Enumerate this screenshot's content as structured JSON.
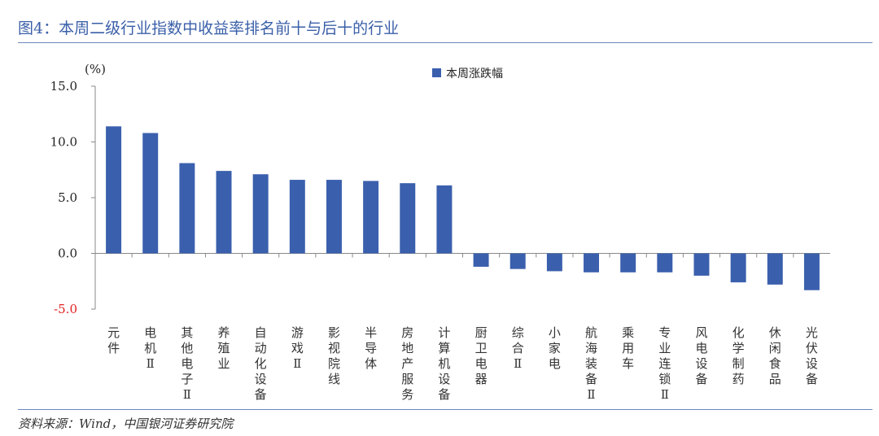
{
  "title": "图4：本周二级行业指数中收益率排名前十与后十的行业",
  "source": "资料来源：Wind，中国银河证券研究院",
  "chart_data": {
    "type": "bar",
    "ylabel": "(%)",
    "ylim": [
      -5.0,
      15.0
    ],
    "yticks": [
      "15.0",
      "10.0",
      "5.0",
      "0.0",
      "-5.0"
    ],
    "ytick_values": [
      15,
      10,
      5,
      0,
      -5
    ],
    "negative_tick_color": "#e02020",
    "bar_color": "#3a5fad",
    "legend": {
      "label": "本周涨跌幅",
      "position": "top-center"
    },
    "categories": [
      "元件",
      "电机Ⅱ",
      "其他电子Ⅱ",
      "养殖业",
      "自动化设备",
      "游戏Ⅱ",
      "影视院线",
      "半导体",
      "房地产服务",
      "计算机设备",
      "厨卫电器",
      "综合Ⅱ",
      "小家电",
      "航海装备Ⅱ",
      "乘用车",
      "专业连锁Ⅱ",
      "风电设备",
      "化学制药",
      "休闲食品",
      "光伏设备"
    ],
    "series": [
      {
        "name": "本周涨跌幅",
        "values": [
          11.4,
          10.8,
          8.1,
          7.4,
          7.1,
          6.6,
          6.6,
          6.5,
          6.3,
          6.1,
          -1.2,
          -1.4,
          -1.6,
          -1.7,
          -1.7,
          -1.7,
          -2.0,
          -2.6,
          -2.8,
          -3.3
        ]
      }
    ]
  }
}
